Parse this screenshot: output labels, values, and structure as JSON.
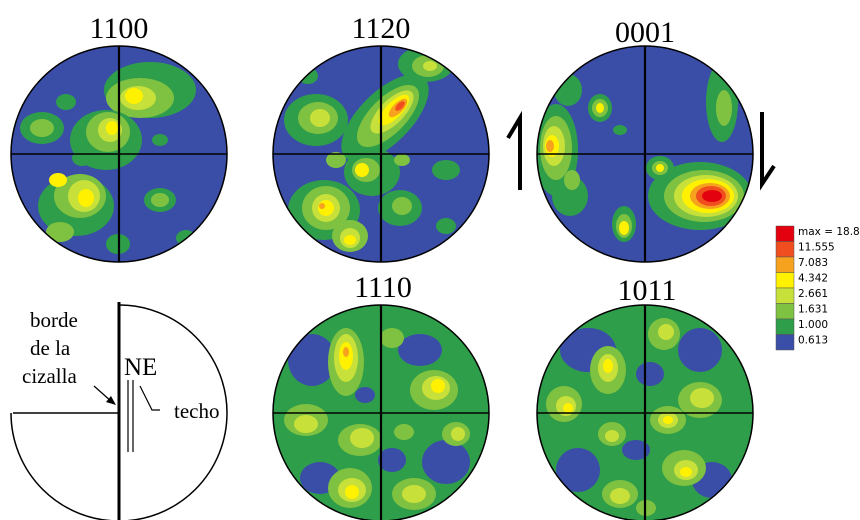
{
  "pole_figures": [
    {
      "label": "1100"
    },
    {
      "label": "1120"
    },
    {
      "label": "0001"
    },
    {
      "label": "1110"
    },
    {
      "label": "1011"
    }
  ],
  "legend": {
    "levels": [
      {
        "text": "max = 18.850",
        "color": "#e3000f"
      },
      {
        "text": "11.555",
        "color": "#f04e1e"
      },
      {
        "text": "7.083",
        "color": "#f6a21e"
      },
      {
        "text": "4.342",
        "color": "#fff100"
      },
      {
        "text": "2.661",
        "color": "#c8e03a"
      },
      {
        "text": "1.631",
        "color": "#7fc241"
      },
      {
        "text": "1.000",
        "color": "#2e9e4a"
      },
      {
        "text": "0.613",
        "color": "#3a4ea8"
      }
    ]
  },
  "reference_sketch": {
    "label_border_line1": "borde",
    "label_border_line2": "de la",
    "label_border_line3": "cizalla",
    "label_ne": "NE",
    "label_roof": "techo"
  },
  "colors": {
    "background_low": "#3a4ea8",
    "level_1": "#2e9e4a",
    "level_2": "#7fc241",
    "level_3": "#c8e03a",
    "level_4": "#fff100",
    "level_5": "#f6a21e",
    "level_6": "#f04e1e",
    "level_max": "#e3000f"
  }
}
